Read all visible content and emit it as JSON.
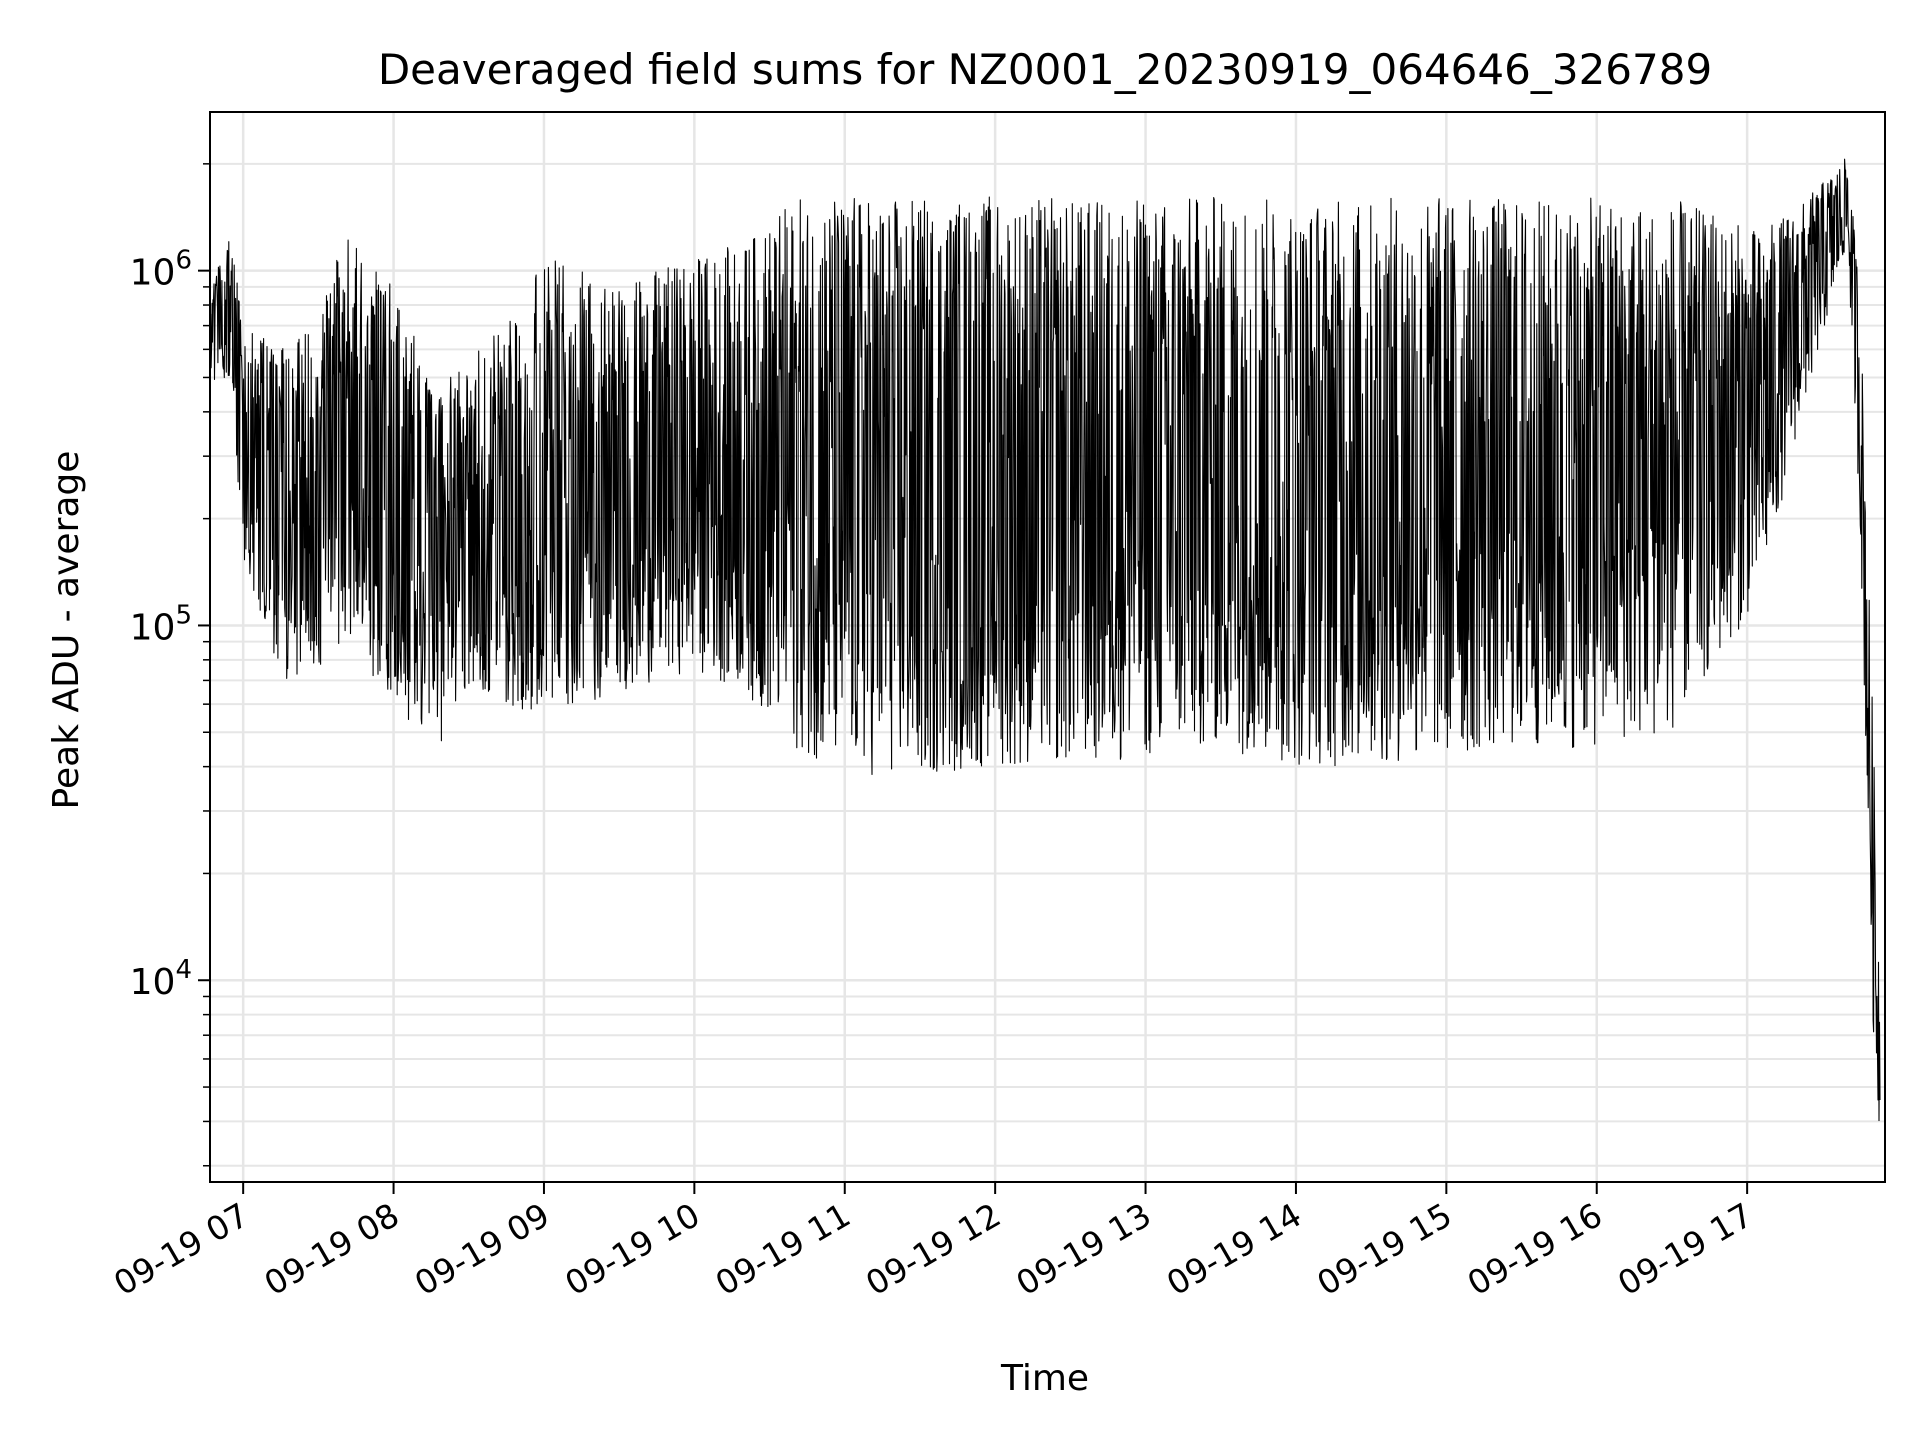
{
  "chart_data": {
    "type": "line",
    "title": "Deaveraged field sums for NZ0001_20230919_064646_326789",
    "xlabel": "Time",
    "ylabel": "Peak ADU - average",
    "yscale": "log",
    "grid": true,
    "xlim": [
      "2023-09-19 06:46:46",
      "2023-09-19 17:55:00"
    ],
    "ylim": [
      2700,
      2800000
    ],
    "x_tick_labels": [
      "09-19 07",
      "09-19 08",
      "09-19 09",
      "09-19 10",
      "09-19 11",
      "09-19 12",
      "09-19 13",
      "09-19 14",
      "09-19 15",
      "09-19 16",
      "09-19 17"
    ],
    "y_tick_labels": [
      {
        "base": "10",
        "exp": "4",
        "value": 10000
      },
      {
        "base": "10",
        "exp": "5",
        "value": 100000
      },
      {
        "base": "10",
        "exp": "6",
        "value": 1000000
      }
    ],
    "line_color": "#000000",
    "envelope": [
      {
        "t": "06:47",
        "min": 480000,
        "max": 900000
      },
      {
        "t": "06:55",
        "min": 500000,
        "max": 1250000
      },
      {
        "t": "07:00",
        "min": 150000,
        "max": 700000
      },
      {
        "t": "07:15",
        "min": 70000,
        "max": 600000
      },
      {
        "t": "07:30",
        "min": 75000,
        "max": 700000
      },
      {
        "t": "07:40",
        "min": 90000,
        "max": 1350000
      },
      {
        "t": "08:00",
        "min": 60000,
        "max": 900000
      },
      {
        "t": "08:15",
        "min": 42000,
        "max": 500000
      },
      {
        "t": "08:30",
        "min": 65000,
        "max": 550000
      },
      {
        "t": "09:00",
        "min": 55000,
        "max": 1100000
      },
      {
        "t": "09:30",
        "min": 65000,
        "max": 900000
      },
      {
        "t": "10:00",
        "min": 75000,
        "max": 1100000
      },
      {
        "t": "10:20",
        "min": 65000,
        "max": 1200000
      },
      {
        "t": "10:40",
        "min": 45000,
        "max": 1600000
      },
      {
        "t": "11:00",
        "min": 38000,
        "max": 1650000
      },
      {
        "t": "11:30",
        "min": 37000,
        "max": 1600000
      },
      {
        "t": "12:00",
        "min": 40000,
        "max": 1650000
      },
      {
        "t": "12:30",
        "min": 40000,
        "max": 1600000
      },
      {
        "t": "13:00",
        "min": 42000,
        "max": 1600000
      },
      {
        "t": "13:30",
        "min": 45000,
        "max": 1650000
      },
      {
        "t": "14:00",
        "min": 40000,
        "max": 1600000
      },
      {
        "t": "14:30",
        "min": 40000,
        "max": 1600000
      },
      {
        "t": "15:00",
        "min": 42000,
        "max": 1650000
      },
      {
        "t": "15:30",
        "min": 45000,
        "max": 1600000
      },
      {
        "t": "16:00",
        "min": 45000,
        "max": 1600000
      },
      {
        "t": "16:30",
        "min": 50000,
        "max": 1600000
      },
      {
        "t": "17:05",
        "min": 120000,
        "max": 1300000
      },
      {
        "t": "17:20",
        "min": 350000,
        "max": 1500000
      },
      {
        "t": "17:40",
        "min": 1200000,
        "max": 2100000
      },
      {
        "t": "17:45",
        "min": 200000,
        "max": 900000
      },
      {
        "t": "17:50",
        "min": 8000,
        "max": 60000
      },
      {
        "t": "17:53",
        "min": 3500,
        "max": 9500
      }
    ]
  }
}
